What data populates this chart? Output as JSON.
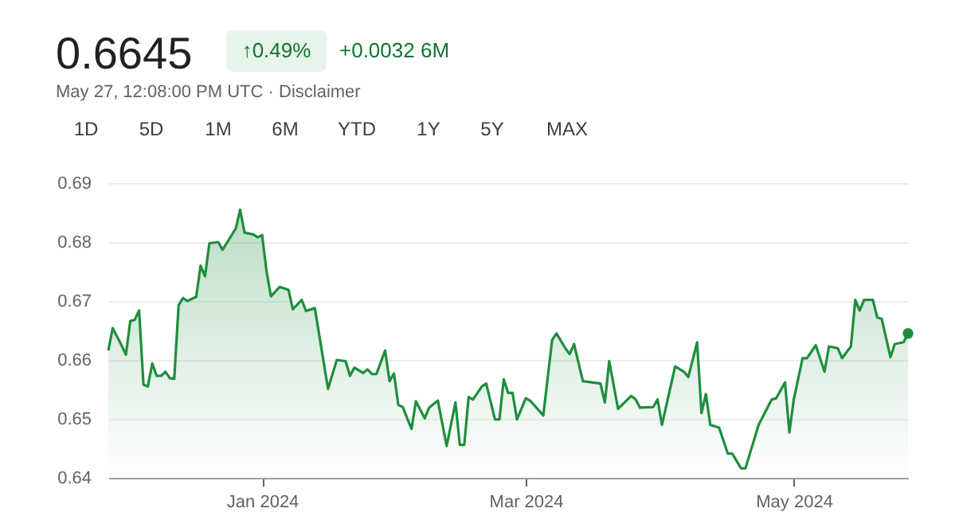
{
  "chart_data": {
    "type": "area",
    "title": "0.6645",
    "subtitle": "May 27, 12:08:00 PM UTC · Disclaimer",
    "annotations": [
      "↑0.49%",
      "+0.0032 6M",
      "1D",
      "5D",
      "1M",
      "6M",
      "YTD",
      "1Y",
      "5Y",
      "MAX"
    ],
    "x": [
      "2023-11-27",
      "2023-11-28",
      "2023-11-30",
      "2023-12-01",
      "2023-12-02",
      "2023-12-03",
      "2023-12-04",
      "2023-12-05",
      "2023-12-06",
      "2023-12-07",
      "2023-12-08",
      "2023-12-09",
      "2023-12-10",
      "2023-12-11",
      "2023-12-12",
      "2023-12-13",
      "2023-12-14",
      "2023-12-15",
      "2023-12-17",
      "2023-12-18",
      "2023-12-19",
      "2023-12-20",
      "2023-12-22",
      "2023-12-23",
      "2023-12-26",
      "2023-12-27",
      "2023-12-28",
      "2023-12-30",
      "2023-12-31",
      "2024-01-01",
      "2024-01-02",
      "2024-01-03",
      "2024-01-05",
      "2024-01-07",
      "2024-01-08",
      "2024-01-10",
      "2024-01-11",
      "2024-01-13",
      "2024-01-16",
      "2024-01-18",
      "2024-01-20",
      "2024-01-21",
      "2024-01-22",
      "2024-01-24",
      "2024-01-25",
      "2024-01-26",
      "2024-01-27",
      "2024-01-29",
      "2024-01-30",
      "2024-01-31",
      "2024-02-01",
      "2024-02-02",
      "2024-02-04",
      "2024-02-05",
      "2024-02-07",
      "2024-02-08",
      "2024-02-10",
      "2024-02-12",
      "2024-02-14",
      "2024-02-15",
      "2024-02-16",
      "2024-02-17",
      "2024-02-18",
      "2024-02-20",
      "2024-02-21",
      "2024-02-23",
      "2024-02-24",
      "2024-02-25",
      "2024-02-26",
      "2024-02-27",
      "2024-02-28",
      "2024-03-01",
      "2024-03-02",
      "2024-03-05",
      "2024-03-07",
      "2024-03-08",
      "2024-03-10",
      "2024-03-11",
      "2024-03-12",
      "2024-03-14",
      "2024-03-18",
      "2024-03-19",
      "2024-03-20",
      "2024-03-22",
      "2024-03-25",
      "2024-03-26",
      "2024-03-27",
      "2024-03-30",
      "2024-03-31",
      "2024-04-01",
      "2024-04-04",
      "2024-04-06",
      "2024-04-07",
      "2024-04-09",
      "2024-04-10",
      "2024-04-11",
      "2024-04-12",
      "2024-04-14",
      "2024-04-16",
      "2024-04-17",
      "2024-04-19",
      "2024-04-20",
      "2024-04-23",
      "2024-04-25",
      "2024-04-26",
      "2024-04-27",
      "2024-04-29",
      "2024-04-30",
      "2024-05-01",
      "2024-05-03",
      "2024-05-04",
      "2024-05-06",
      "2024-05-08",
      "2024-05-09",
      "2024-05-11",
      "2024-05-12",
      "2024-05-14",
      "2024-05-15",
      "2024-05-16",
      "2024-05-17",
      "2024-05-19",
      "2024-05-20",
      "2024-05-21",
      "2024-05-23",
      "2024-05-24",
      "2024-05-26",
      "2024-05-27"
    ],
    "series": [
      {
        "color": "#1e8e3e",
        "values": [
          0.6616,
          0.6654,
          0.6625,
          0.6609,
          0.6666,
          0.6668,
          0.6684,
          0.6558,
          0.6555,
          0.6594,
          0.6573,
          0.6573,
          0.658,
          0.6569,
          0.6568,
          0.6693,
          0.6705,
          0.67,
          0.6707,
          0.676,
          0.6742,
          0.6798,
          0.68,
          0.6787,
          0.6823,
          0.6855,
          0.6816,
          0.6813,
          0.6808,
          0.6812,
          0.6751,
          0.6708,
          0.6724,
          0.6719,
          0.6686,
          0.6702,
          0.6683,
          0.6688,
          0.6551,
          0.66,
          0.6598,
          0.6573,
          0.6587,
          0.6578,
          0.6584,
          0.6576,
          0.6576,
          0.6616,
          0.6564,
          0.6577,
          0.6524,
          0.652,
          0.6483,
          0.653,
          0.6501,
          0.6519,
          0.6531,
          0.6454,
          0.6528,
          0.6456,
          0.6456,
          0.6537,
          0.6533,
          0.6555,
          0.656,
          0.6499,
          0.6499,
          0.6567,
          0.6544,
          0.6544,
          0.6499,
          0.6535,
          0.6531,
          0.6506,
          0.6634,
          0.6645,
          0.662,
          0.661,
          0.6627,
          0.6564,
          0.656,
          0.6528,
          0.6598,
          0.6517,
          0.6539,
          0.6533,
          0.6519,
          0.652,
          0.6533,
          0.649,
          0.6589,
          0.658,
          0.6571,
          0.663,
          0.651,
          0.6542,
          0.649,
          0.6485,
          0.6441,
          0.6441,
          0.6416,
          0.6416,
          0.649,
          0.6519,
          0.6533,
          0.6535,
          0.6562,
          0.6477,
          0.6533,
          0.6603,
          0.6603,
          0.6625,
          0.658,
          0.6623,
          0.662,
          0.6603,
          0.6623,
          0.6702,
          0.6684,
          0.6702,
          0.6702,
          0.6672,
          0.667,
          0.6605,
          0.6627,
          0.663,
          0.6645
        ]
      }
    ],
    "xlim": [
      "2023-11-27",
      "2024-05-27"
    ],
    "xticks": [
      {
        "value": "2024-01-01",
        "label": "Jan 2024"
      },
      {
        "value": "2024-03-01",
        "label": "Mar 2024"
      },
      {
        "value": "2024-05-01",
        "label": "May 2024"
      }
    ],
    "ylim": [
      0.64,
      0.69
    ],
    "yticks": [
      0.64,
      0.65,
      0.66,
      0.67,
      0.68,
      0.69
    ],
    "grid": "y"
  }
}
